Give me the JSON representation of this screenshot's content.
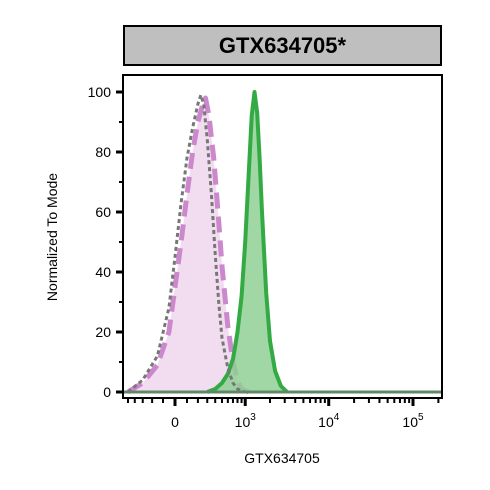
{
  "chart_data": {
    "type": "area",
    "title": "GTX634705*",
    "xlabel": "GTX634705",
    "ylabel": "Normalized To Mode",
    "ylim": [
      0,
      100
    ],
    "y_ticks": [
      "0",
      "20",
      "40",
      "60",
      "80",
      "100"
    ],
    "x_ticks": [
      {
        "base": "0",
        "exp": ""
      },
      {
        "base": "10",
        "exp": "3"
      },
      {
        "base": "10",
        "exp": "4"
      },
      {
        "base": "10",
        "exp": "5"
      }
    ],
    "x_scale": "biexponential",
    "grid": false,
    "series": [
      {
        "style": "dotted-grey",
        "color": "#777777",
        "points": [
          [
            -500,
            0
          ],
          [
            -300,
            4
          ],
          [
            -150,
            12
          ],
          [
            -50,
            28
          ],
          [
            0,
            45
          ],
          [
            50,
            63
          ],
          [
            100,
            78
          ],
          [
            150,
            88
          ],
          [
            200,
            96
          ],
          [
            230,
            99
          ],
          [
            260,
            96
          ],
          [
            300,
            84
          ],
          [
            350,
            66
          ],
          [
            400,
            46
          ],
          [
            450,
            30
          ],
          [
            500,
            18
          ],
          [
            600,
            8
          ],
          [
            700,
            3
          ],
          [
            800,
            1
          ],
          [
            1000,
            0
          ]
        ]
      },
      {
        "style": "dashed-pink-filled",
        "color": "#cc88cc",
        "fill": "#f0d6ec",
        "points": [
          [
            -500,
            0
          ],
          [
            -300,
            3
          ],
          [
            -150,
            9
          ],
          [
            -50,
            20
          ],
          [
            0,
            35
          ],
          [
            50,
            50
          ],
          [
            100,
            66
          ],
          [
            150,
            80
          ],
          [
            200,
            90
          ],
          [
            250,
            96
          ],
          [
            280,
            98
          ],
          [
            320,
            92
          ],
          [
            380,
            78
          ],
          [
            440,
            60
          ],
          [
            500,
            42
          ],
          [
            600,
            22
          ],
          [
            700,
            10
          ],
          [
            800,
            4
          ],
          [
            900,
            1
          ],
          [
            1100,
            0
          ]
        ]
      },
      {
        "style": "solid-green-filled",
        "color": "#33aa44",
        "fill": "#8fd094",
        "points": [
          [
            300,
            0
          ],
          [
            400,
            1
          ],
          [
            500,
            3
          ],
          [
            600,
            6
          ],
          [
            700,
            11
          ],
          [
            800,
            20
          ],
          [
            900,
            32
          ],
          [
            1000,
            50
          ],
          [
            1100,
            72
          ],
          [
            1200,
            92
          ],
          [
            1300,
            100
          ],
          [
            1400,
            93
          ],
          [
            1500,
            78
          ],
          [
            1600,
            60
          ],
          [
            1800,
            33
          ],
          [
            2000,
            17
          ],
          [
            2300,
            7
          ],
          [
            2700,
            2
          ],
          [
            3200,
            0
          ]
        ]
      }
    ]
  }
}
